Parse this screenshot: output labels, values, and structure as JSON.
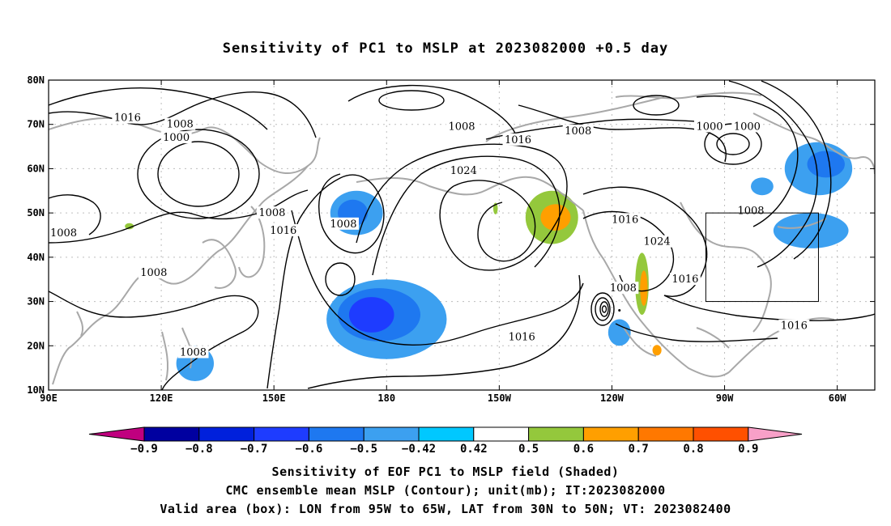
{
  "title": "Sensitivity of PC1 to MSLP at 2023082000 +0.5 day",
  "map": {
    "lon_range": [
      90,
      310
    ],
    "lat_range": [
      10,
      80
    ],
    "lat_labels": [
      "80N",
      "70N",
      "60N",
      "50N",
      "40N",
      "30N",
      "20N",
      "10N"
    ],
    "lat_values": [
      80,
      70,
      60,
      50,
      40,
      30,
      20,
      10
    ],
    "lon_labels": [
      "90E",
      "120E",
      "150E",
      "180",
      "150W",
      "120W",
      "90W",
      "60W"
    ],
    "lon_values": [
      90,
      120,
      150,
      180,
      210,
      240,
      270,
      300
    ],
    "gridlines": true,
    "valid_box": {
      "lon": [
        265,
        295
      ],
      "lat": [
        30,
        50
      ]
    },
    "contour_labels": [
      {
        "text": "1016",
        "lon": 111,
        "lat": 71.5
      },
      {
        "text": "1008",
        "lon": 125,
        "lat": 70
      },
      {
        "text": "1000",
        "lon": 124,
        "lat": 67
      },
      {
        "text": "1008",
        "lon": 94,
        "lat": 45.5
      },
      {
        "text": "1008",
        "lon": 118,
        "lat": 36.5
      },
      {
        "text": "1008",
        "lon": 128.5,
        "lat": 18.5
      },
      {
        "text": "1008",
        "lon": 149.5,
        "lat": 50
      },
      {
        "text": "1016",
        "lon": 152.5,
        "lat": 46
      },
      {
        "text": "1008",
        "lon": 168.5,
        "lat": 47.5
      },
      {
        "text": "1008",
        "lon": 200,
        "lat": 69.5
      },
      {
        "text": "1016",
        "lon": 215,
        "lat": 66.5
      },
      {
        "text": "1024",
        "lon": 200.5,
        "lat": 59.5
      },
      {
        "text": "1008",
        "lon": 231,
        "lat": 68.5
      },
      {
        "text": "1016",
        "lon": 216,
        "lat": 22
      },
      {
        "text": "1016",
        "lon": 243.5,
        "lat": 48.5
      },
      {
        "text": "1024",
        "lon": 252,
        "lat": 43.5
      },
      {
        "text": "1008",
        "lon": 243,
        "lat": 33
      },
      {
        "text": "1000",
        "lon": 266,
        "lat": 69.5
      },
      {
        "text": "1000",
        "lon": 276,
        "lat": 69.5
      },
      {
        "text": "1008",
        "lon": 277,
        "lat": 50.5
      },
      {
        "text": "1016",
        "lon": 259.5,
        "lat": 35
      },
      {
        "text": "1016",
        "lon": 288.5,
        "lat": 24.5
      }
    ],
    "sensitivity_regions": [
      {
        "level": -0.5,
        "center": [
          172,
          50
        ],
        "radius": [
          7,
          5
        ]
      },
      {
        "level": -0.6,
        "center": [
          171,
          50
        ],
        "radius": [
          4,
          3
        ]
      },
      {
        "level": -0.5,
        "center": [
          180,
          26
        ],
        "radius": [
          16,
          9
        ]
      },
      {
        "level": -0.6,
        "center": [
          178,
          27
        ],
        "radius": [
          11,
          6
        ]
      },
      {
        "level": -0.7,
        "center": [
          176,
          27
        ],
        "radius": [
          6,
          4
        ]
      },
      {
        "level": -0.5,
        "center": [
          129,
          16
        ],
        "radius": [
          5,
          4
        ]
      },
      {
        "level": -0.5,
        "center": [
          242,
          23
        ],
        "radius": [
          3,
          3
        ]
      },
      {
        "level": -0.5,
        "center": [
          295,
          60
        ],
        "radius": [
          9,
          6
        ]
      },
      {
        "level": -0.6,
        "center": [
          297,
          61
        ],
        "radius": [
          5,
          3
        ]
      },
      {
        "level": -0.5,
        "center": [
          293,
          46
        ],
        "radius": [
          10,
          4
        ]
      },
      {
        "level": -0.5,
        "center": [
          280,
          56
        ],
        "radius": [
          3,
          2
        ]
      },
      {
        "level": 0.5,
        "center": [
          224,
          49
        ],
        "radius": [
          7,
          6
        ]
      },
      {
        "level": 0.6,
        "center": [
          225,
          49
        ],
        "radius": [
          4,
          3
        ]
      },
      {
        "level": 0.5,
        "center": [
          248,
          34
        ],
        "radius": [
          1.8,
          7
        ]
      },
      {
        "level": 0.6,
        "center": [
          248.5,
          33
        ],
        "radius": [
          1,
          4
        ]
      },
      {
        "level": 0.6,
        "center": [
          252,
          19
        ],
        "radius": [
          1.2,
          1.2
        ]
      },
      {
        "level": 0.5,
        "center": [
          111.5,
          47
        ],
        "radius": [
          1.2,
          0.7
        ]
      },
      {
        "level": 0.5,
        "center": [
          209,
          51
        ],
        "radius": [
          0.6,
          1.3
        ]
      }
    ],
    "low_center": {
      "lon": 242,
      "lat": 28
    }
  },
  "colorbar": {
    "levels": [
      "-0.9",
      "-0.8",
      "-0.7",
      "-0.6",
      "-0.5",
      "-0.42",
      "0.42",
      "0.5",
      "0.6",
      "0.7",
      "0.8",
      "0.9"
    ],
    "colors": [
      "#c0007f",
      "#0000a0",
      "#0020dc",
      "#1e3cff",
      "#1e78f0",
      "#3ca0f0",
      "#00c8ff",
      "#ffffff",
      "#94c83c",
      "#ff9f00",
      "#ff7800",
      "#ff5000",
      "#ff1e00",
      "#f8a0c8"
    ]
  },
  "captions": {
    "line1": "Sensitivity of EOF PC1 to MSLP field (Shaded)",
    "line2": "CMC ensemble mean MSLP (Contour); unit(mb); IT:2023082000",
    "line3": "Valid area (box): LON from 95W to 65W, LAT from 30N to 50N; VT: 2023082400"
  }
}
